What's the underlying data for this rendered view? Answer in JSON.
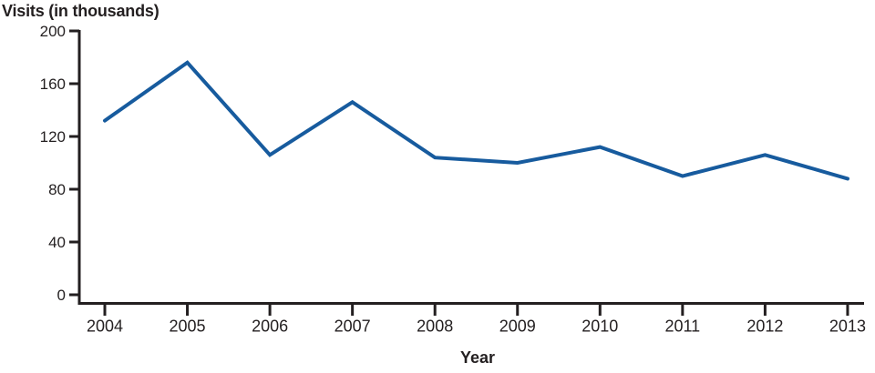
{
  "chart_data": {
    "type": "line",
    "ylabel": "Visits (in thousands)",
    "xlabel": "Year",
    "categories": [
      "2004",
      "2005",
      "2006",
      "2007",
      "2008",
      "2009",
      "2010",
      "2011",
      "2012",
      "2013"
    ],
    "values": [
      132,
      176,
      106,
      146,
      104,
      100,
      112,
      90,
      106,
      88
    ],
    "yticks": [
      0,
      40,
      80,
      120,
      160,
      200
    ],
    "ylim": [
      0,
      200
    ],
    "grid": false,
    "legend": "none",
    "line_color": "#175b9e",
    "axis_color": "#231f20",
    "background": "#ffffff"
  }
}
